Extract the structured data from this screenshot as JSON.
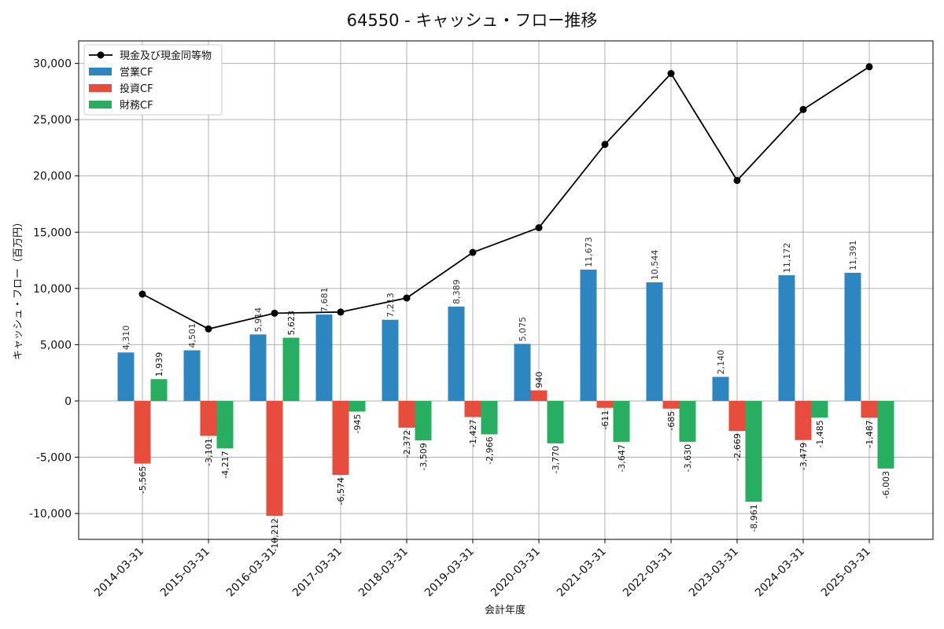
{
  "chart_data": {
    "type": "bar+line",
    "title": "64550 - キャッシュ・フロー推移",
    "xlabel": "会計年度",
    "ylabel": "キャッシュ・フロー（百万円）",
    "ylim": [
      -12300,
      32000
    ],
    "yticks": [
      -10000,
      -5000,
      0,
      5000,
      10000,
      15000,
      20000,
      25000,
      30000
    ],
    "ytick_labels": [
      "-10,000",
      "-5,000",
      "0",
      "5,000",
      "10,000",
      "15,000",
      "20,000",
      "25,000",
      "30,000"
    ],
    "grid": true,
    "legend_position": "top-left",
    "categories": [
      "2014-03-31",
      "2015-03-31",
      "2016-03-31",
      "2017-03-31",
      "2018-03-31",
      "2019-03-31",
      "2020-03-31",
      "2021-03-31",
      "2022-03-31",
      "2023-03-31",
      "2024-03-31",
      "2025-03-31"
    ],
    "line_series": {
      "name": "現金及び現金同等物",
      "color": "#000000",
      "values": [
        9500,
        6400,
        7800,
        7900,
        9150,
        13200,
        15400,
        22800,
        29100,
        19600,
        25900,
        29700
      ]
    },
    "series": [
      {
        "name": "営業CF",
        "color": "#2e86c1",
        "values": [
          4310,
          4501,
          5914,
          7681,
          7213,
          8389,
          5075,
          11673,
          10544,
          2140,
          11172,
          11391
        ],
        "labels": [
          "4,310",
          "4,501",
          "5,914",
          "7,681",
          "7,213",
          "8,389",
          "5,075",
          "11,673",
          "10,544",
          "2,140",
          "11,172",
          "11,391"
        ]
      },
      {
        "name": "投資CF",
        "color": "#e74c3c",
        "values": [
          -5565,
          -3101,
          -10212,
          -6574,
          -2372,
          -1427,
          940,
          -611,
          -685,
          -2669,
          -3479,
          -1487
        ],
        "labels": [
          "-5,565",
          "-3,101",
          "-10,212",
          "-6,574",
          "-2,372",
          "-1,427",
          "940",
          "-611",
          "-685",
          "-2,669",
          "-3,479",
          "-1,487"
        ]
      },
      {
        "name": "財務CF",
        "color": "#27ae60",
        "values": [
          1939,
          -4217,
          5623,
          -945,
          -3509,
          -2966,
          -3770,
          -3647,
          -3630,
          -8961,
          -1485,
          -6003
        ],
        "labels": [
          "1,939",
          "-4,217",
          "5,623",
          "-945",
          "-3,509",
          "-2,966",
          "-3,770",
          "-3,647",
          "-3,630",
          "-8,961",
          "-1,485",
          "-6,003"
        ]
      }
    ]
  }
}
